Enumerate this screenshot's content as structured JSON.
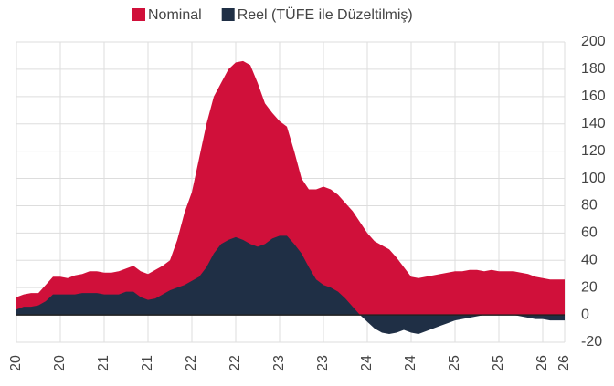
{
  "chart_data": {
    "type": "area",
    "categories": [
      "20",
      null,
      null,
      null,
      null,
      null,
      "20",
      null,
      null,
      null,
      null,
      null,
      "21",
      null,
      null,
      null,
      null,
      null,
      "21",
      null,
      null,
      null,
      null,
      null,
      "22",
      null,
      null,
      null,
      null,
      null,
      "22",
      null,
      null,
      null,
      null,
      null,
      "23",
      null,
      null,
      null,
      null,
      null,
      "23",
      null,
      null,
      null,
      null,
      null,
      "24",
      null,
      null,
      null,
      null,
      null,
      "24",
      null,
      null,
      null,
      null,
      null,
      "25",
      null,
      null,
      null,
      null,
      null,
      "25",
      null,
      null,
      null,
      null,
      null,
      "26",
      null,
      null,
      "26"
    ],
    "series": [
      {
        "name": "Nominal",
        "color": "#d0103a",
        "values": [
          13,
          15,
          16,
          16,
          22,
          28,
          28,
          27,
          29,
          30,
          32,
          32,
          31,
          31,
          32,
          34,
          36,
          32,
          30,
          33,
          36,
          40,
          55,
          75,
          90,
          115,
          140,
          160,
          170,
          180,
          185,
          186,
          183,
          170,
          155,
          148,
          142,
          138,
          120,
          100,
          92,
          92,
          94,
          92,
          88,
          82,
          76,
          68,
          60,
          54,
          51,
          48,
          42,
          35,
          28,
          27,
          28,
          29,
          30,
          31,
          32,
          32,
          33,
          33,
          32,
          33,
          32,
          32,
          32,
          31,
          30,
          28,
          27,
          26,
          26,
          26
        ]
      },
      {
        "name": "Reel (TÜFE ile Düzeltilmiş)",
        "color": "#1f2f45",
        "values": [
          4,
          6,
          6,
          7,
          10,
          15,
          15,
          15,
          15,
          16,
          16,
          16,
          15,
          15,
          15,
          17,
          17,
          13,
          11,
          12,
          15,
          18,
          20,
          22,
          25,
          28,
          35,
          45,
          52,
          55,
          57,
          55,
          52,
          50,
          52,
          56,
          58,
          58,
          52,
          45,
          35,
          26,
          22,
          20,
          17,
          12,
          6,
          0,
          -5,
          -10,
          -13,
          -14,
          -13,
          -11,
          -13,
          -14,
          -12,
          -10,
          -8,
          -6,
          -4,
          -3,
          -2,
          -1,
          0,
          0,
          0,
          0,
          0,
          -1,
          -2,
          -3,
          -3,
          -4,
          -4,
          -4
        ]
      }
    ],
    "ylim": [
      -20,
      200
    ],
    "yticks": [
      -20,
      0,
      20,
      40,
      60,
      80,
      100,
      120,
      140,
      160,
      180,
      200
    ],
    "grid": true,
    "legend": "top"
  }
}
